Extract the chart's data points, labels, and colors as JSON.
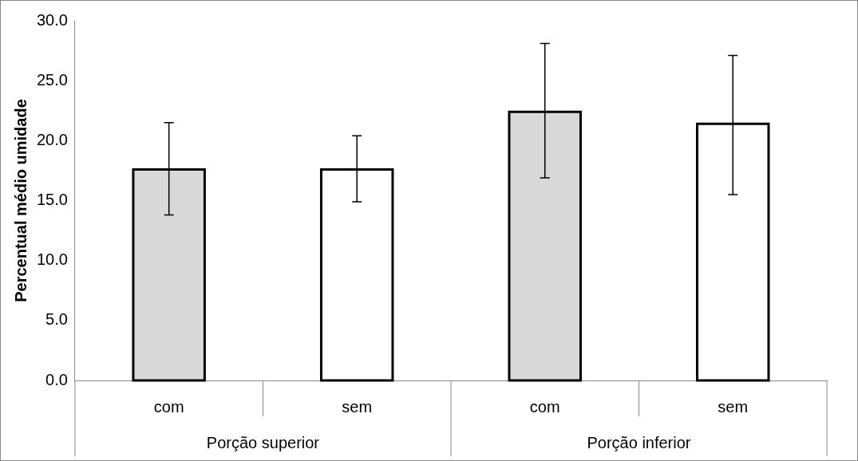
{
  "chart_data": {
    "type": "bar",
    "ylabel": "Percentual médio umidade",
    "categories": [
      "com",
      "sem",
      "com",
      "sem"
    ],
    "values": [
      17.6,
      17.6,
      22.4,
      21.4
    ],
    "colors": [
      "#d9d9d9",
      "#ffffff",
      "#d9d9d9",
      "#ffffff"
    ],
    "errors": [
      [
        13.8,
        21.5
      ],
      [
        14.9,
        20.4
      ],
      [
        16.9,
        28.1
      ],
      [
        15.5,
        27.1
      ]
    ],
    "annotations": [
      "Porção superior",
      "Porção inferior"
    ],
    "ylim": [
      0,
      30
    ],
    "yticks": [
      {
        "value": 0,
        "label": "0.0"
      },
      {
        "value": 5,
        "label": "5.0"
      },
      {
        "value": 10,
        "label": "10.0"
      },
      {
        "value": 15,
        "label": "15.0"
      },
      {
        "value": 20,
        "label": "20.0"
      },
      {
        "value": 25,
        "label": "25.0"
      },
      {
        "value": 30,
        "label": "30.0"
      }
    ],
    "grid": false,
    "legend": false
  }
}
